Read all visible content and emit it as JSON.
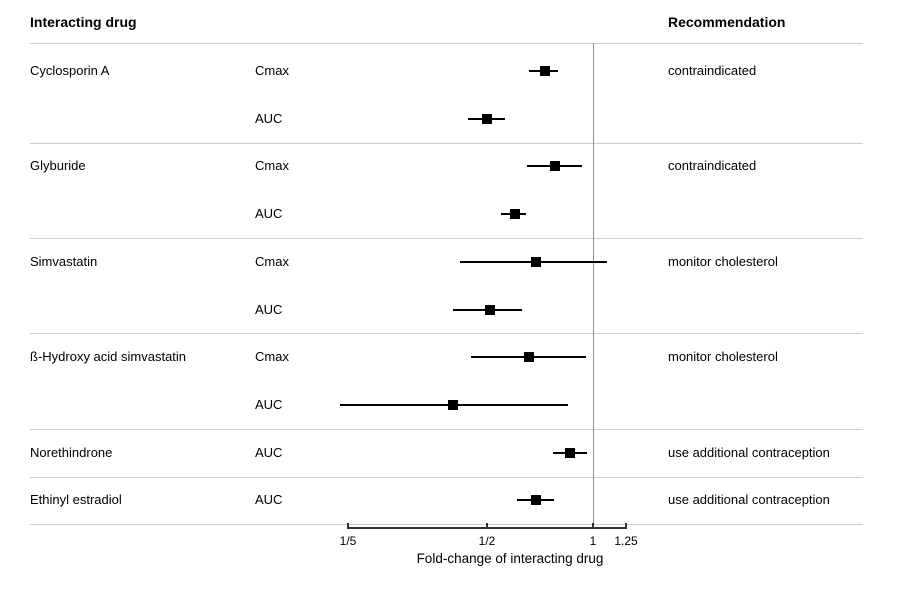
{
  "header": {
    "left": "Interacting drug",
    "right": "Recommendation"
  },
  "chart_data": {
    "type": "forest",
    "xlabel": "Fold-change of interacting drug",
    "xscale": "log",
    "xlim": [
      0.17,
      1.3
    ],
    "reference_line": 1,
    "grid": false,
    "xticks": [
      {
        "value": 0.2,
        "label": "1/5"
      },
      {
        "value": 0.5,
        "label": "1/2"
      },
      {
        "value": 1,
        "label": "1"
      },
      {
        "value": 1.25,
        "label": "1.25"
      }
    ],
    "groups": [
      {
        "drug": "Cyclosporin A",
        "recommendation": "contraindicated",
        "rows": [
          {
            "measure": "Cmax",
            "estimate": 0.73,
            "ci_low": 0.66,
            "ci_high": 0.8
          },
          {
            "measure": "AUC",
            "estimate": 0.5,
            "ci_low": 0.44,
            "ci_high": 0.56
          }
        ]
      },
      {
        "drug": "Glyburide",
        "recommendation": "contraindicated",
        "rows": [
          {
            "measure": "Cmax",
            "estimate": 0.78,
            "ci_low": 0.65,
            "ci_high": 0.93
          },
          {
            "measure": "AUC",
            "estimate": 0.6,
            "ci_low": 0.55,
            "ci_high": 0.65
          }
        ]
      },
      {
        "drug": "Simvastatin",
        "recommendation": "monitor cholesterol",
        "rows": [
          {
            "measure": "Cmax",
            "estimate": 0.69,
            "ci_low": 0.42,
            "ci_high": 1.1
          },
          {
            "measure": "AUC",
            "estimate": 0.51,
            "ci_low": 0.4,
            "ci_high": 0.63
          }
        ]
      },
      {
        "drug": "ß-Hydroxy acid simvastatin",
        "recommendation": "monitor cholesterol",
        "rows": [
          {
            "measure": "Cmax",
            "estimate": 0.66,
            "ci_low": 0.45,
            "ci_high": 0.96
          },
          {
            "measure": "AUC",
            "estimate": 0.4,
            "ci_low": 0.19,
            "ci_high": 0.85
          }
        ]
      },
      {
        "drug": "Norethindrone",
        "recommendation": "use additional contraception",
        "rows": [
          {
            "measure": "AUC",
            "estimate": 0.86,
            "ci_low": 0.77,
            "ci_high": 0.96
          }
        ]
      },
      {
        "drug": "Ethinyl estradiol",
        "recommendation": "use additional contraception",
        "rows": [
          {
            "measure": "AUC",
            "estimate": 0.69,
            "ci_low": 0.61,
            "ci_high": 0.78
          }
        ]
      }
    ]
  },
  "colors": {
    "marker": "#000000",
    "ci_line": "#000000",
    "divider": "#cccccc",
    "reference_line": "#8f8f8f",
    "axis": "#333333",
    "text": "#000000",
    "background": "#ffffff"
  }
}
